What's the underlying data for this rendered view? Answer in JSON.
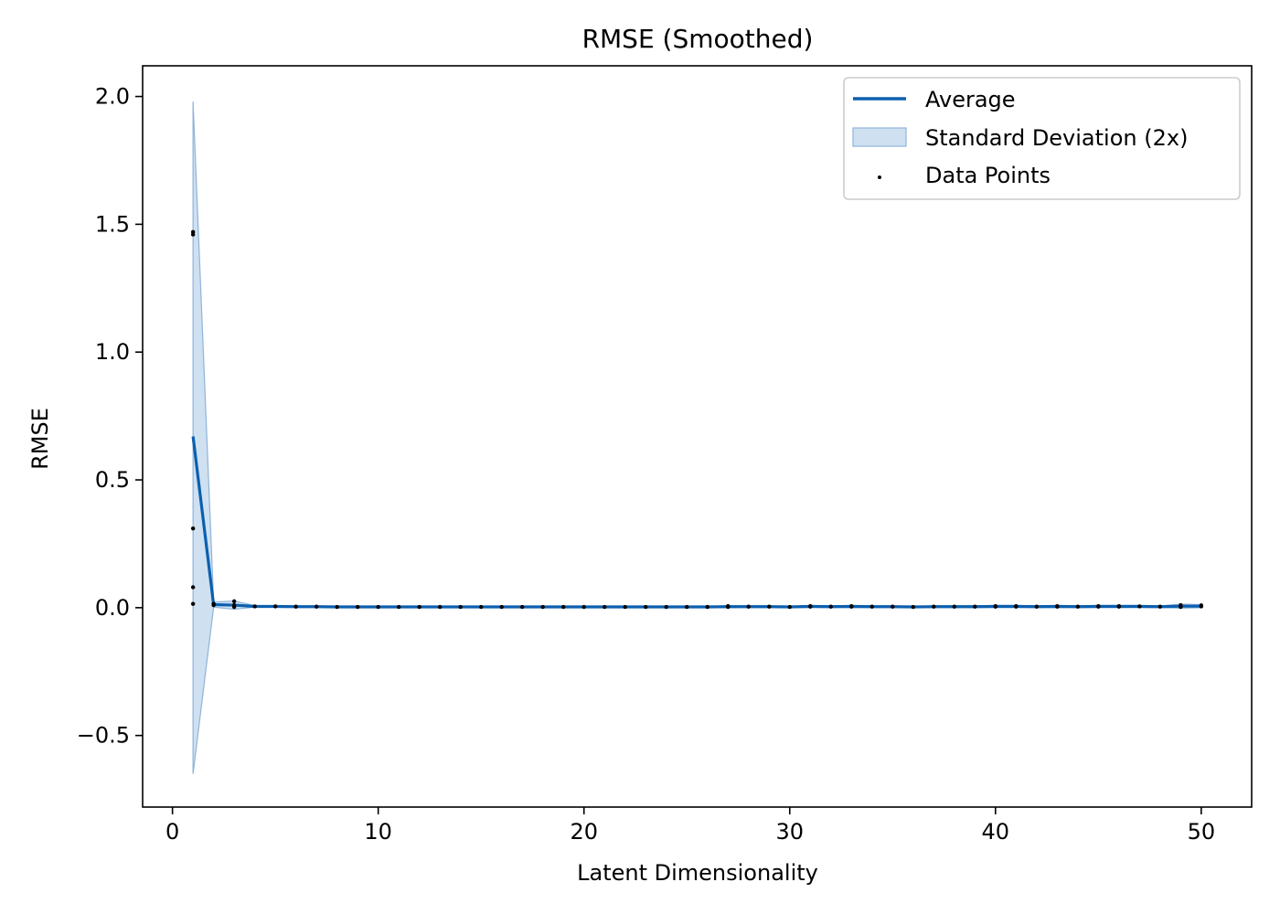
{
  "chart_data": {
    "type": "line",
    "title": "RMSE (Smoothed)",
    "xlabel": "Latent Dimensionality",
    "ylabel": "RMSE",
    "xlim": [
      -1.45,
      52.45
    ],
    "ylim": [
      -0.78,
      2.12
    ],
    "xticks": [
      0,
      10,
      20,
      30,
      40,
      50
    ],
    "xtick_labels": [
      "0",
      "10",
      "20",
      "30",
      "40",
      "50"
    ],
    "yticks": [
      -0.5,
      0.0,
      0.5,
      1.0,
      1.5,
      2.0
    ],
    "ytick_labels": [
      "−0.5",
      "0.0",
      "0.5",
      "1.0",
      "1.5",
      "2.0"
    ],
    "grid": false,
    "legend_position": "top-right",
    "colors": {
      "line": "#0b5fb0",
      "band": "#a8c6e3",
      "band_edge": "#8fb4da",
      "points": "#000000"
    },
    "series": [
      {
        "name": "Average",
        "kind": "line",
        "x": [
          1,
          2,
          3,
          4,
          5,
          6,
          7,
          8,
          9,
          10,
          11,
          12,
          13,
          14,
          15,
          16,
          17,
          18,
          19,
          20,
          21,
          22,
          23,
          24,
          25,
          26,
          27,
          28,
          29,
          30,
          31,
          32,
          33,
          34,
          35,
          36,
          37,
          38,
          39,
          40,
          41,
          42,
          43,
          44,
          45,
          46,
          47,
          48,
          49,
          50
        ],
        "y": [
          0.67,
          0.012,
          0.01,
          0.005,
          0.005,
          0.004,
          0.004,
          0.003,
          0.003,
          0.003,
          0.003,
          0.003,
          0.003,
          0.003,
          0.003,
          0.003,
          0.003,
          0.003,
          0.003,
          0.003,
          0.003,
          0.003,
          0.003,
          0.003,
          0.003,
          0.003,
          0.004,
          0.004,
          0.004,
          0.003,
          0.005,
          0.004,
          0.005,
          0.004,
          0.004,
          0.003,
          0.004,
          0.004,
          0.004,
          0.005,
          0.005,
          0.004,
          0.005,
          0.004,
          0.005,
          0.005,
          0.005,
          0.004,
          0.006,
          0.006
        ]
      },
      {
        "name": "Standard Deviation (2x)",
        "kind": "band",
        "x": [
          1,
          2,
          3,
          4,
          5,
          6,
          7,
          8,
          9,
          10,
          11,
          12,
          13,
          14,
          15,
          16,
          17,
          18,
          19,
          20,
          21,
          22,
          23,
          24,
          25,
          26,
          27,
          28,
          29,
          30,
          31,
          32,
          33,
          34,
          35,
          36,
          37,
          38,
          39,
          40,
          41,
          42,
          43,
          44,
          45,
          46,
          47,
          48,
          49,
          50
        ],
        "lower": [
          -0.65,
          0.002,
          -0.006,
          0.002,
          0.002,
          0.002,
          0.002,
          0.001,
          0.001,
          0.001,
          0.001,
          0.001,
          0.001,
          0.001,
          0.001,
          0.001,
          0.001,
          0.001,
          0.001,
          0.001,
          0.001,
          0.001,
          0.001,
          0.001,
          0.001,
          0.001,
          0.001,
          0.001,
          0.001,
          0.001,
          0.001,
          0.001,
          0.001,
          0.001,
          0.001,
          0.001,
          0.001,
          0.001,
          0.001,
          0.001,
          0.001,
          0.001,
          0.001,
          0.001,
          0.001,
          0.001,
          0.001,
          0.001,
          -0.002,
          0.0
        ],
        "upper": [
          1.98,
          0.022,
          0.026,
          0.008,
          0.008,
          0.006,
          0.006,
          0.005,
          0.005,
          0.005,
          0.005,
          0.005,
          0.005,
          0.005,
          0.005,
          0.005,
          0.005,
          0.005,
          0.005,
          0.005,
          0.005,
          0.005,
          0.005,
          0.005,
          0.005,
          0.005,
          0.007,
          0.007,
          0.007,
          0.005,
          0.009,
          0.007,
          0.009,
          0.007,
          0.007,
          0.005,
          0.007,
          0.007,
          0.007,
          0.009,
          0.009,
          0.007,
          0.009,
          0.007,
          0.009,
          0.009,
          0.009,
          0.007,
          0.014,
          0.012
        ]
      },
      {
        "name": "Data Points",
        "kind": "scatter",
        "points": [
          [
            1,
            1.46
          ],
          [
            1,
            1.47
          ],
          [
            1,
            0.31
          ],
          [
            1,
            0.08
          ],
          [
            1,
            0.015
          ],
          [
            2,
            0.015
          ],
          [
            2,
            0.01
          ],
          [
            3,
            0.025
          ],
          [
            3,
            0.01
          ],
          [
            3,
            0.003
          ],
          [
            4,
            0.005
          ],
          [
            5,
            0.005
          ],
          [
            6,
            0.004
          ],
          [
            7,
            0.004
          ],
          [
            8,
            0.003
          ],
          [
            9,
            0.003
          ],
          [
            10,
            0.003
          ],
          [
            11,
            0.003
          ],
          [
            12,
            0.003
          ],
          [
            13,
            0.003
          ],
          [
            14,
            0.003
          ],
          [
            15,
            0.003
          ],
          [
            16,
            0.003
          ],
          [
            17,
            0.003
          ],
          [
            18,
            0.003
          ],
          [
            19,
            0.003
          ],
          [
            20,
            0.003
          ],
          [
            21,
            0.003
          ],
          [
            22,
            0.003
          ],
          [
            23,
            0.003
          ],
          [
            24,
            0.003
          ],
          [
            25,
            0.003
          ],
          [
            26,
            0.003
          ],
          [
            27,
            0.006
          ],
          [
            27,
            0.003
          ],
          [
            28,
            0.004
          ],
          [
            29,
            0.004
          ],
          [
            30,
            0.003
          ],
          [
            31,
            0.006
          ],
          [
            31,
            0.004
          ],
          [
            32,
            0.004
          ],
          [
            33,
            0.006
          ],
          [
            33,
            0.004
          ],
          [
            34,
            0.004
          ],
          [
            35,
            0.004
          ],
          [
            36,
            0.003
          ],
          [
            37,
            0.004
          ],
          [
            38,
            0.004
          ],
          [
            39,
            0.004
          ],
          [
            40,
            0.006
          ],
          [
            40,
            0.004
          ],
          [
            41,
            0.006
          ],
          [
            41,
            0.004
          ],
          [
            42,
            0.004
          ],
          [
            43,
            0.006
          ],
          [
            43,
            0.004
          ],
          [
            44,
            0.004
          ],
          [
            45,
            0.006
          ],
          [
            45,
            0.004
          ],
          [
            46,
            0.006
          ],
          [
            46,
            0.004
          ],
          [
            47,
            0.005
          ],
          [
            48,
            0.004
          ],
          [
            49,
            0.01
          ],
          [
            49,
            0.003
          ],
          [
            50,
            0.009
          ],
          [
            50,
            0.005
          ]
        ]
      }
    ]
  }
}
